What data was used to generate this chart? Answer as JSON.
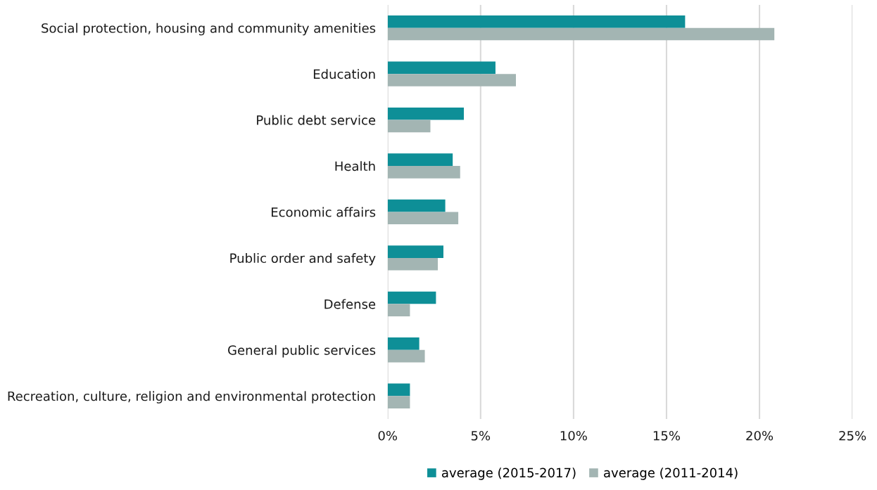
{
  "chart_data": {
    "type": "bar",
    "orientation": "horizontal",
    "categories": [
      "Social protection, housing and community amenities",
      "Education",
      "Public debt service",
      "Health",
      "Economic affairs",
      "Public order and safety",
      "Defense",
      "General public services",
      "Recreation, culture, religion and environmental protection"
    ],
    "series": [
      {
        "name": "average (2015-2017)",
        "color": "#0e8f97",
        "values": [
          16.0,
          5.8,
          4.1,
          3.5,
          3.1,
          3.0,
          2.6,
          1.7,
          1.2
        ]
      },
      {
        "name": "average (2011-2014)",
        "color": "#a3b5b3",
        "values": [
          20.8,
          6.9,
          2.3,
          3.9,
          3.8,
          2.7,
          1.2,
          2.0,
          1.2
        ]
      }
    ],
    "xlim": [
      0,
      25
    ],
    "xticks": [
      {
        "value": 0,
        "label": "0%"
      },
      {
        "value": 5,
        "label": "5%"
      },
      {
        "value": 10,
        "label": "10%"
      },
      {
        "value": 15,
        "label": "15%"
      },
      {
        "value": 20,
        "label": "20%"
      },
      {
        "value": 25,
        "label": "25%"
      }
    ],
    "grid": "x",
    "legend": "bottom"
  }
}
